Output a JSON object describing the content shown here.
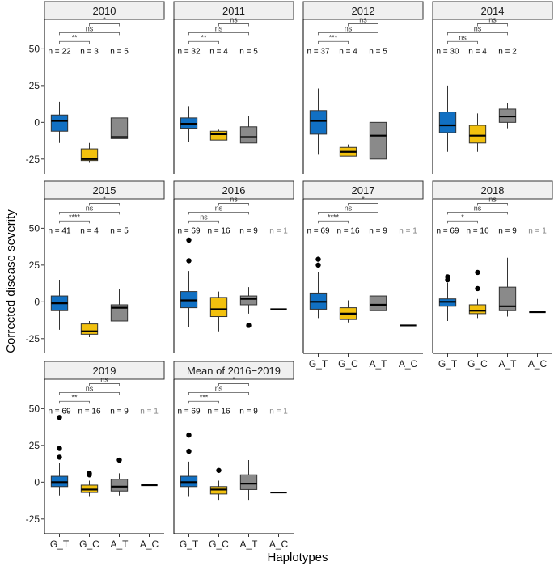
{
  "chart_data": {
    "type": "boxplot",
    "xlabel": "Haplotypes",
    "ylabel": "Corrected disease severity",
    "ylim": [
      -35,
      70
    ],
    "yticks": [
      -25,
      0,
      25,
      50
    ],
    "categories": [
      "G_T",
      "G_C",
      "A_T",
      "A_C"
    ],
    "colors": {
      "G_T": "#1170c3",
      "G_C": "#f2c10e",
      "A_T": "#8a8a8a",
      "A_C": "#333333"
    },
    "panels": [
      {
        "title": "2010",
        "n": [
          "n = 22",
          "n = 3",
          "n = 5"
        ],
        "comparisons": [
          {
            "pair": [
              "G_T",
              "G_C"
            ],
            "label": "**"
          },
          {
            "pair": [
              "G_T",
              "A_T"
            ],
            "label": "ns"
          },
          {
            "pair": [
              "G_C",
              "A_T"
            ],
            "label": "*"
          }
        ],
        "boxes": [
          {
            "cat": "G_T",
            "q1": -6,
            "med": 1,
            "q3": 5,
            "lo": -14,
            "hi": 14,
            "out": []
          },
          {
            "cat": "G_C",
            "q1": -26,
            "med": -25,
            "q3": -18,
            "lo": -27,
            "hi": -14,
            "out": []
          },
          {
            "cat": "A_T",
            "q1": -11,
            "med": -10,
            "q3": 3,
            "lo": -11,
            "hi": 3,
            "out": []
          }
        ]
      },
      {
        "title": "2011",
        "n": [
          "n = 32",
          "n = 4",
          "n = 5"
        ],
        "comparisons": [
          {
            "pair": [
              "G_T",
              "G_C"
            ],
            "label": "**"
          },
          {
            "pair": [
              "G_T",
              "A_T"
            ],
            "label": "ns"
          },
          {
            "pair": [
              "G_C",
              "A_T"
            ],
            "label": "ns"
          }
        ],
        "boxes": [
          {
            "cat": "G_T",
            "q1": -4,
            "med": -1,
            "q3": 3,
            "lo": -13,
            "hi": 11,
            "out": []
          },
          {
            "cat": "G_C",
            "q1": -12,
            "med": -8,
            "q3": -6,
            "lo": -12,
            "hi": -5,
            "out": []
          },
          {
            "cat": "A_T",
            "q1": -14,
            "med": -10,
            "q3": -3,
            "lo": -14,
            "hi": 4,
            "out": []
          }
        ]
      },
      {
        "title": "2012",
        "n": [
          "n = 37",
          "n = 4",
          "n = 5"
        ],
        "comparisons": [
          {
            "pair": [
              "G_T",
              "G_C"
            ],
            "label": "***"
          },
          {
            "pair": [
              "G_T",
              "A_T"
            ],
            "label": "ns"
          },
          {
            "pair": [
              "G_C",
              "A_T"
            ],
            "label": "ns"
          }
        ],
        "boxes": [
          {
            "cat": "G_T",
            "q1": -8,
            "med": 1,
            "q3": 8,
            "lo": -22,
            "hi": 23,
            "out": []
          },
          {
            "cat": "G_C",
            "q1": -23,
            "med": -20,
            "q3": -17,
            "lo": -23,
            "hi": -15,
            "out": []
          },
          {
            "cat": "A_T",
            "q1": -25,
            "med": -9,
            "q3": 0,
            "lo": -28,
            "hi": 2,
            "out": []
          }
        ]
      },
      {
        "title": "2014",
        "n": [
          "n = 30",
          "n = 4",
          "n = 2"
        ],
        "comparisons": [
          {
            "pair": [
              "G_T",
              "G_C"
            ],
            "label": "ns"
          },
          {
            "pair": [
              "G_T",
              "A_T"
            ],
            "label": "ns"
          },
          {
            "pair": [
              "G_C",
              "A_T"
            ],
            "label": "ns"
          }
        ],
        "boxes": [
          {
            "cat": "G_T",
            "q1": -7,
            "med": -2,
            "q3": 7,
            "lo": -20,
            "hi": 25,
            "out": []
          },
          {
            "cat": "G_C",
            "q1": -14,
            "med": -9,
            "q3": -2,
            "lo": -20,
            "hi": 6,
            "out": []
          },
          {
            "cat": "A_T",
            "q1": 0,
            "med": 4,
            "q3": 9,
            "lo": -4,
            "hi": 13,
            "out": []
          }
        ]
      },
      {
        "title": "2015",
        "n": [
          "n = 41",
          "n = 4",
          "n = 5"
        ],
        "comparisons": [
          {
            "pair": [
              "G_T",
              "G_C"
            ],
            "label": "****"
          },
          {
            "pair": [
              "G_T",
              "A_T"
            ],
            "label": "ns"
          },
          {
            "pair": [
              "G_C",
              "A_T"
            ],
            "label": "*"
          }
        ],
        "boxes": [
          {
            "cat": "G_T",
            "q1": -6,
            "med": -1,
            "q3": 4,
            "lo": -19,
            "hi": 15,
            "out": []
          },
          {
            "cat": "G_C",
            "q1": -22,
            "med": -20,
            "q3": -15,
            "lo": -24,
            "hi": -13,
            "out": []
          },
          {
            "cat": "A_T",
            "q1": -13,
            "med": -4,
            "q3": -2,
            "lo": -13,
            "hi": 9,
            "out": []
          }
        ]
      },
      {
        "title": "2016",
        "n": [
          "n = 69",
          "n = 16",
          "n = 9",
          "n = 1"
        ],
        "comparisons": [
          {
            "pair": [
              "G_T",
              "G_C"
            ],
            "label": "ns"
          },
          {
            "pair": [
              "G_T",
              "A_T"
            ],
            "label": "ns"
          },
          {
            "pair": [
              "G_C",
              "A_T"
            ],
            "label": "ns"
          }
        ],
        "boxes": [
          {
            "cat": "G_T",
            "q1": -4,
            "med": 1,
            "q3": 7,
            "lo": -17,
            "hi": 21,
            "out": [
              28,
              42
            ]
          },
          {
            "cat": "G_C",
            "q1": -10,
            "med": -5,
            "q3": 3,
            "lo": -20,
            "hi": 7,
            "out": []
          },
          {
            "cat": "A_T",
            "q1": -2,
            "med": 2,
            "q3": 4,
            "lo": -8,
            "hi": 10,
            "out": [
              -16
            ]
          },
          {
            "cat": "A_C",
            "q1": -5,
            "med": -5,
            "q3": -5,
            "lo": -5,
            "hi": -5,
            "out": []
          }
        ]
      },
      {
        "title": "2017",
        "n": [
          "n = 69",
          "n = 16",
          "n = 9",
          "n = 1"
        ],
        "comparisons": [
          {
            "pair": [
              "G_T",
              "G_C"
            ],
            "label": "****"
          },
          {
            "pair": [
              "G_T",
              "A_T"
            ],
            "label": "ns"
          },
          {
            "pair": [
              "G_C",
              "A_T"
            ],
            "label": "*"
          }
        ],
        "boxes": [
          {
            "cat": "G_T",
            "q1": -5,
            "med": 0,
            "q3": 6,
            "lo": -11,
            "hi": 20,
            "out": [
              25,
              29
            ]
          },
          {
            "cat": "G_C",
            "q1": -12,
            "med": -8,
            "q3": -4,
            "lo": -14,
            "hi": 1,
            "out": []
          },
          {
            "cat": "A_T",
            "q1": -6,
            "med": -2,
            "q3": 4,
            "lo": -15,
            "hi": 11,
            "out": []
          },
          {
            "cat": "A_C",
            "q1": -16,
            "med": -16,
            "q3": -16,
            "lo": -16,
            "hi": -16,
            "out": []
          }
        ]
      },
      {
        "title": "2018",
        "n": [
          "n = 69",
          "n = 16",
          "n = 9",
          "n = 1"
        ],
        "comparisons": [
          {
            "pair": [
              "G_T",
              "G_C"
            ],
            "label": "*"
          },
          {
            "pair": [
              "G_T",
              "A_T"
            ],
            "label": "ns"
          },
          {
            "pair": [
              "G_C",
              "A_T"
            ],
            "label": "ns"
          }
        ],
        "boxes": [
          {
            "cat": "G_T",
            "q1": -3,
            "med": 0,
            "q3": 2,
            "lo": -13,
            "hi": 13,
            "out": [
              15,
              17
            ]
          },
          {
            "cat": "G_C",
            "q1": -8,
            "med": -6,
            "q3": -2,
            "lo": -11,
            "hi": 2,
            "out": [
              9,
              20
            ]
          },
          {
            "cat": "A_T",
            "q1": -6,
            "med": -3,
            "q3": 10,
            "lo": -10,
            "hi": 30,
            "out": []
          },
          {
            "cat": "A_C",
            "q1": -7,
            "med": -7,
            "q3": -7,
            "lo": -7,
            "hi": -7,
            "out": []
          }
        ]
      },
      {
        "title": "2019",
        "n": [
          "n = 69",
          "n = 16",
          "n = 9",
          "n = 1"
        ],
        "comparisons": [
          {
            "pair": [
              "G_T",
              "G_C"
            ],
            "label": "**"
          },
          {
            "pair": [
              "G_T",
              "A_T"
            ],
            "label": "ns"
          },
          {
            "pair": [
              "G_C",
              "A_T"
            ],
            "label": "ns"
          }
        ],
        "boxes": [
          {
            "cat": "G_T",
            "q1": -3,
            "med": 0,
            "q3": 4,
            "lo": -9,
            "hi": 13,
            "out": [
              17,
              23,
              44
            ]
          },
          {
            "cat": "G_C",
            "q1": -7,
            "med": -5,
            "q3": -2,
            "lo": -10,
            "hi": 1,
            "out": [
              5,
              6
            ]
          },
          {
            "cat": "A_T",
            "q1": -6,
            "med": -3,
            "q3": 2,
            "lo": -9,
            "hi": 6,
            "out": [
              15
            ]
          },
          {
            "cat": "A_C",
            "q1": -2,
            "med": -2,
            "q3": -2,
            "lo": -2,
            "hi": -2,
            "out": []
          }
        ]
      },
      {
        "title": "Mean of 2016−2019",
        "n": [
          "n = 69",
          "n = 16",
          "n = 9",
          "n = 1"
        ],
        "comparisons": [
          {
            "pair": [
              "G_T",
              "G_C"
            ],
            "label": "***"
          },
          {
            "pair": [
              "G_T",
              "A_T"
            ],
            "label": "ns"
          },
          {
            "pair": [
              "G_C",
              "A_T"
            ],
            "label": "*"
          }
        ],
        "boxes": [
          {
            "cat": "G_T",
            "q1": -3,
            "med": 0,
            "q3": 4,
            "lo": -10,
            "hi": 14,
            "out": [
              21,
              32
            ]
          },
          {
            "cat": "G_C",
            "q1": -8,
            "med": -5,
            "q3": -3,
            "lo": -12,
            "hi": 1,
            "out": [
              8
            ]
          },
          {
            "cat": "A_T",
            "q1": -5,
            "med": -1,
            "q3": 5,
            "lo": -12,
            "hi": 15,
            "out": []
          },
          {
            "cat": "A_C",
            "q1": -7,
            "med": -7,
            "q3": -7,
            "lo": -7,
            "hi": -7,
            "out": []
          }
        ]
      }
    ]
  }
}
